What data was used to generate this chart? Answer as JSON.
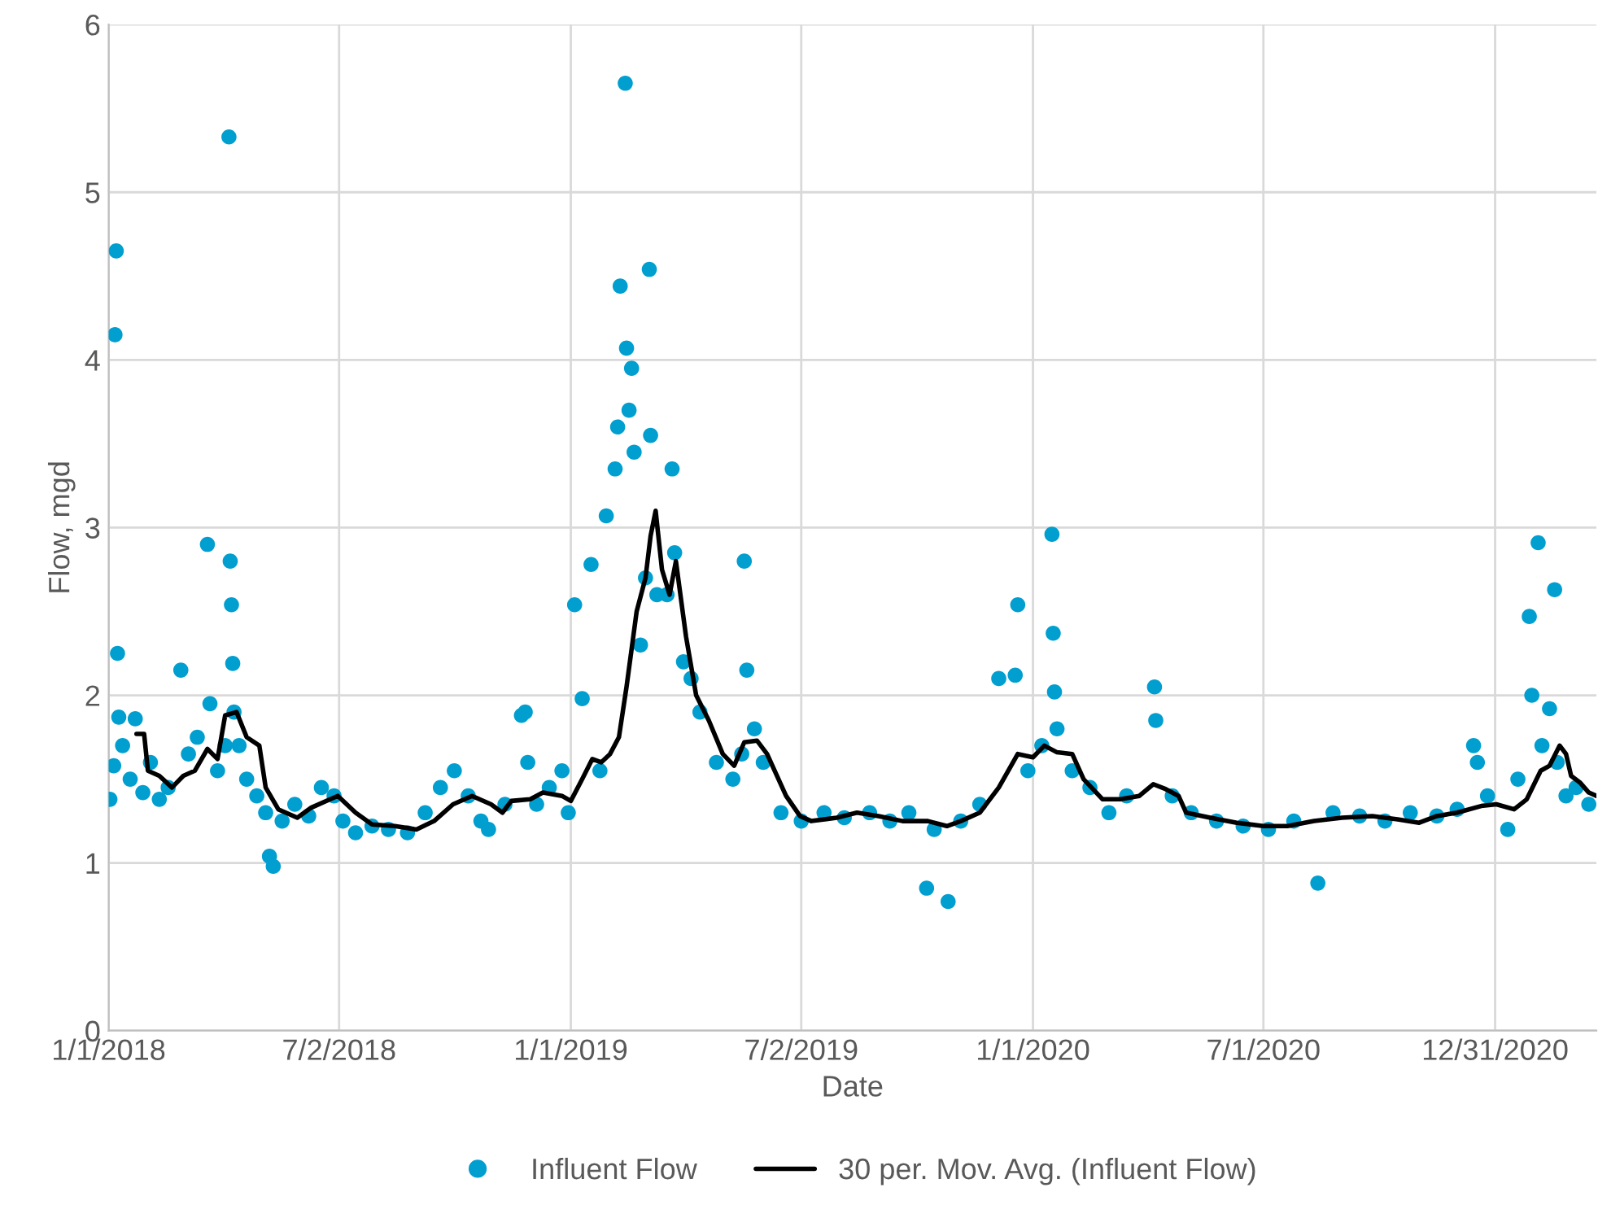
{
  "chart_data": {
    "type": "scatter",
    "xlabel": "Date",
    "ylabel": "Flow, mgd",
    "xlim": [
      "2018-01-01",
      "2021-03-21"
    ],
    "xticks": [
      {
        "value": "2018-01-01",
        "label": "1/1/2018"
      },
      {
        "value": "2018-07-02",
        "label": "7/2/2018"
      },
      {
        "value": "2019-01-01",
        "label": "1/1/2019"
      },
      {
        "value": "2019-07-02",
        "label": "7/2/2019"
      },
      {
        "value": "2020-01-01",
        "label": "1/1/2020"
      },
      {
        "value": "2020-07-01",
        "label": "7/1/2020"
      },
      {
        "value": "2020-12-31",
        "label": "12/31/2020"
      }
    ],
    "ylim": [
      0,
      6
    ],
    "yticks": [
      0,
      1,
      2,
      3,
      4,
      5,
      6
    ],
    "grid": true,
    "legend": "bottom",
    "series": [
      {
        "name": "Influent Flow",
        "marker": "circle",
        "color": "#009fcf",
        "x": [
          "2018-01-02",
          "2018-01-05",
          "2018-01-06",
          "2018-01-07",
          "2018-01-08",
          "2018-01-09",
          "2018-01-12",
          "2018-01-18",
          "2018-01-22",
          "2018-01-28",
          "2018-02-03",
          "2018-02-10",
          "2018-02-17",
          "2018-02-27",
          "2018-03-05",
          "2018-03-12",
          "2018-03-20",
          "2018-03-22",
          "2018-03-28",
          "2018-04-03",
          "2018-04-06",
          "2018-04-07",
          "2018-04-08",
          "2018-04-09",
          "2018-04-10",
          "2018-04-14",
          "2018-04-20",
          "2018-04-28",
          "2018-05-05",
          "2018-05-08",
          "2018-05-11",
          "2018-05-18",
          "2018-05-28",
          "2018-06-08",
          "2018-06-18",
          "2018-06-28",
          "2018-07-05",
          "2018-07-15",
          "2018-07-28",
          "2018-08-10",
          "2018-08-25",
          "2018-09-08",
          "2018-09-20",
          "2018-10-01",
          "2018-10-12",
          "2018-10-22",
          "2018-10-28",
          "2018-11-10",
          "2018-11-23",
          "2018-11-26",
          "2018-11-28",
          "2018-12-05",
          "2018-12-15",
          "2018-12-25",
          "2018-12-30",
          "2019-01-04",
          "2019-01-10",
          "2019-01-17",
          "2019-01-24",
          "2019-01-29",
          "2019-02-05",
          "2019-02-07",
          "2019-02-09",
          "2019-02-13",
          "2019-02-14",
          "2019-02-16",
          "2019-02-18",
          "2019-02-20",
          "2019-02-25",
          "2019-03-01",
          "2019-03-04",
          "2019-03-05",
          "2019-03-10",
          "2019-03-18",
          "2019-03-22",
          "2019-03-24",
          "2019-03-31",
          "2019-04-06",
          "2019-04-13",
          "2019-04-26",
          "2019-05-09",
          "2019-05-16",
          "2019-05-18",
          "2019-05-20",
          "2019-05-26",
          "2019-06-02",
          "2019-06-16",
          "2019-07-02",
          "2019-07-20",
          "2019-08-05",
          "2019-08-25",
          "2019-09-10",
          "2019-09-25",
          "2019-10-09",
          "2019-10-15",
          "2019-10-26",
          "2019-11-05",
          "2019-11-20",
          "2019-12-05",
          "2019-12-18",
          "2019-12-20",
          "2019-12-28",
          "2020-01-08",
          "2020-01-16",
          "2020-01-17",
          "2020-01-18",
          "2020-01-20",
          "2020-02-01",
          "2020-02-15",
          "2020-03-01",
          "2020-03-15",
          "2020-04-06",
          "2020-04-07",
          "2020-04-20",
          "2020-05-05",
          "2020-05-25",
          "2020-06-15",
          "2020-07-05",
          "2020-07-25",
          "2020-08-13",
          "2020-08-25",
          "2020-09-15",
          "2020-10-05",
          "2020-10-25",
          "2020-11-15",
          "2020-12-01",
          "2020-12-14",
          "2020-12-17",
          "2020-12-25",
          "2021-01-10",
          "2021-01-18",
          "2021-01-27",
          "2021-01-29",
          "2021-02-03",
          "2021-02-06",
          "2021-02-12",
          "2021-02-16",
          "2021-02-18",
          "2021-02-25",
          "2021-03-05",
          "2021-03-15"
        ],
        "values": [
          1.38,
          1.58,
          4.15,
          4.65,
          2.25,
          1.87,
          1.7,
          1.5,
          1.86,
          1.42,
          1.6,
          1.38,
          1.45,
          2.15,
          1.65,
          1.75,
          2.9,
          1.95,
          1.55,
          1.7,
          5.33,
          2.8,
          2.54,
          2.19,
          1.9,
          1.7,
          1.5,
          1.4,
          1.3,
          1.04,
          0.98,
          1.25,
          1.35,
          1.28,
          1.45,
          1.4,
          1.25,
          1.18,
          1.22,
          1.2,
          1.18,
          1.3,
          1.45,
          1.55,
          1.4,
          1.25,
          1.2,
          1.35,
          1.88,
          1.9,
          1.6,
          1.35,
          1.45,
          1.55,
          1.3,
          2.54,
          1.98,
          2.78,
          1.55,
          3.07,
          3.35,
          3.6,
          4.44,
          5.65,
          4.07,
          3.7,
          3.95,
          3.45,
          2.3,
          2.7,
          4.54,
          3.55,
          2.6,
          2.6,
          3.35,
          2.85,
          2.2,
          2.1,
          1.9,
          1.6,
          1.5,
          1.65,
          2.8,
          2.15,
          1.8,
          1.6,
          1.3,
          1.25,
          1.3,
          1.27,
          1.3,
          1.25,
          1.3,
          0.85,
          1.2,
          0.77,
          1.25,
          1.35,
          2.1,
          2.12,
          2.54,
          1.55,
          1.7,
          2.96,
          2.37,
          2.02,
          1.8,
          1.55,
          1.45,
          1.3,
          1.4,
          2.05,
          1.85,
          1.4,
          1.3,
          1.25,
          1.22,
          1.2,
          1.25,
          0.88,
          1.3,
          1.28,
          1.25,
          1.3,
          1.28,
          1.32,
          1.7,
          1.6,
          1.4,
          1.2,
          1.5,
          2.47,
          2.0,
          2.91,
          1.7,
          1.92,
          2.63,
          1.6,
          1.4,
          1.45,
          1.35
        ]
      },
      {
        "name": "30 per. Mov. Avg. (Influent Flow)",
        "type": "line",
        "color": "#000000",
        "x": [
          "2018-01-23",
          "2018-01-29",
          "2018-02-01",
          "2018-02-10",
          "2018-02-20",
          "2018-03-01",
          "2018-03-10",
          "2018-03-20",
          "2018-03-28",
          "2018-04-03",
          "2018-04-12",
          "2018-04-20",
          "2018-04-30",
          "2018-05-05",
          "2018-05-15",
          "2018-05-30",
          "2018-06-10",
          "2018-06-25",
          "2018-07-01",
          "2018-07-15",
          "2018-07-28",
          "2018-08-15",
          "2018-09-01",
          "2018-09-15",
          "2018-09-30",
          "2018-10-15",
          "2018-10-30",
          "2018-11-08",
          "2018-11-15",
          "2018-11-30",
          "2018-12-10",
          "2018-12-25",
          "2019-01-01",
          "2019-01-10",
          "2019-01-18",
          "2019-01-25",
          "2019-02-01",
          "2019-02-08",
          "2019-02-14",
          "2019-02-22",
          "2019-03-01",
          "2019-03-05",
          "2019-03-09",
          "2019-03-14",
          "2019-03-20",
          "2019-03-25",
          "2019-04-02",
          "2019-04-10",
          "2019-04-20",
          "2019-05-01",
          "2019-05-10",
          "2019-05-18",
          "2019-05-28",
          "2019-06-05",
          "2019-06-20",
          "2019-07-01",
          "2019-07-10",
          "2019-07-30",
          "2019-08-15",
          "2019-09-01",
          "2019-09-20",
          "2019-10-10",
          "2019-10-25",
          "2019-11-05",
          "2019-11-20",
          "2019-12-05",
          "2019-12-20",
          "2020-01-01",
          "2020-01-10",
          "2020-01-20",
          "2020-02-01",
          "2020-02-10",
          "2020-02-25",
          "2020-03-10",
          "2020-03-25",
          "2020-04-05",
          "2020-04-15",
          "2020-04-25",
          "2020-05-01",
          "2020-05-20",
          "2020-06-10",
          "2020-07-01",
          "2020-07-20",
          "2020-08-10",
          "2020-09-01",
          "2020-09-25",
          "2020-10-15",
          "2020-11-01",
          "2020-11-15",
          "2020-12-01",
          "2020-12-20",
          "2021-01-01",
          "2021-01-15",
          "2021-01-25",
          "2021-02-05",
          "2021-02-12",
          "2021-02-20",
          "2021-02-25",
          "2021-03-01",
          "2021-03-08",
          "2021-03-15",
          "2021-03-21"
        ],
        "values": [
          1.77,
          1.77,
          1.55,
          1.52,
          1.45,
          1.52,
          1.55,
          1.68,
          1.62,
          1.88,
          1.9,
          1.75,
          1.7,
          1.45,
          1.32,
          1.27,
          1.33,
          1.38,
          1.4,
          1.3,
          1.23,
          1.22,
          1.2,
          1.25,
          1.35,
          1.4,
          1.35,
          1.3,
          1.37,
          1.38,
          1.42,
          1.4,
          1.37,
          1.5,
          1.62,
          1.6,
          1.65,
          1.75,
          2.05,
          2.5,
          2.7,
          2.95,
          3.1,
          2.75,
          2.6,
          2.8,
          2.35,
          2.0,
          1.85,
          1.65,
          1.58,
          1.72,
          1.73,
          1.65,
          1.4,
          1.28,
          1.25,
          1.27,
          1.3,
          1.28,
          1.25,
          1.25,
          1.22,
          1.25,
          1.3,
          1.45,
          1.65,
          1.63,
          1.7,
          1.66,
          1.65,
          1.5,
          1.38,
          1.38,
          1.4,
          1.47,
          1.44,
          1.4,
          1.3,
          1.27,
          1.24,
          1.22,
          1.22,
          1.25,
          1.27,
          1.28,
          1.26,
          1.24,
          1.28,
          1.3,
          1.34,
          1.35,
          1.32,
          1.38,
          1.55,
          1.58,
          1.7,
          1.65,
          1.52,
          1.48,
          1.42,
          1.4
        ]
      }
    ]
  }
}
